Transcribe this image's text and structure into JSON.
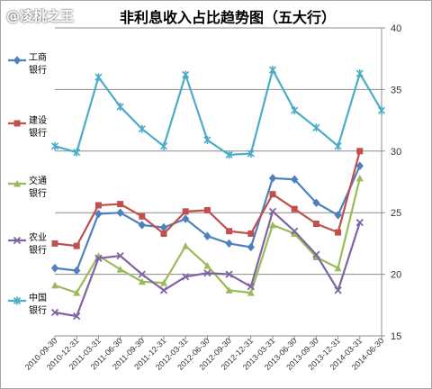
{
  "watermark": "@凌桃之王",
  "chart_data": {
    "type": "line",
    "title": "非利息收入占比趋势图（五大行）",
    "categories": [
      "2010-09-30",
      "2010-12-31",
      "2011-03-31",
      "2011-06-30",
      "2011-09-30",
      "2011-12-31",
      "2012-03-31",
      "2012-06-30",
      "2012-09-30",
      "2012-12-31",
      "2013-03-31",
      "2013-06-30",
      "2013-09-30",
      "2013-12-31",
      "2014-03-31",
      "2014-06-30"
    ],
    "ylim": [
      15,
      40
    ],
    "yticks": [
      15,
      20,
      25,
      30,
      35,
      40
    ],
    "grid": true,
    "legend_position": "left",
    "series": [
      {
        "name": "工商银行",
        "color": "#4f81bd",
        "marker": "diamond",
        "values": [
          20.5,
          20.3,
          24.9,
          25.0,
          24.0,
          23.8,
          24.5,
          23.1,
          22.5,
          22.2,
          27.8,
          27.7,
          25.8,
          24.8,
          28.8,
          null
        ]
      },
      {
        "name": "建设银行",
        "color": "#c0504d",
        "marker": "square",
        "values": [
          22.5,
          22.3,
          25.6,
          25.7,
          24.7,
          23.3,
          25.1,
          25.2,
          23.5,
          23.3,
          26.5,
          25.3,
          24.1,
          23.4,
          30.0,
          null
        ]
      },
      {
        "name": "交通银行",
        "color": "#9bbb59",
        "marker": "triangle",
        "values": [
          19.1,
          18.5,
          21.5,
          20.4,
          19.4,
          19.3,
          22.3,
          20.7,
          18.7,
          18.5,
          24.0,
          23.3,
          21.4,
          20.5,
          27.8,
          null
        ]
      },
      {
        "name": "农业银行",
        "color": "#8064a2",
        "marker": "x",
        "values": [
          16.9,
          16.6,
          21.3,
          21.5,
          20.0,
          18.7,
          19.8,
          20.1,
          20.0,
          19.0,
          25.1,
          23.5,
          21.6,
          18.7,
          24.2,
          null
        ]
      },
      {
        "name": "中国银行",
        "color": "#4bacc6",
        "marker": "star",
        "values": [
          30.4,
          29.9,
          36.0,
          33.6,
          31.8,
          30.4,
          36.2,
          30.9,
          29.7,
          29.8,
          36.6,
          33.3,
          31.9,
          30.4,
          36.3,
          33.3
        ]
      }
    ]
  }
}
